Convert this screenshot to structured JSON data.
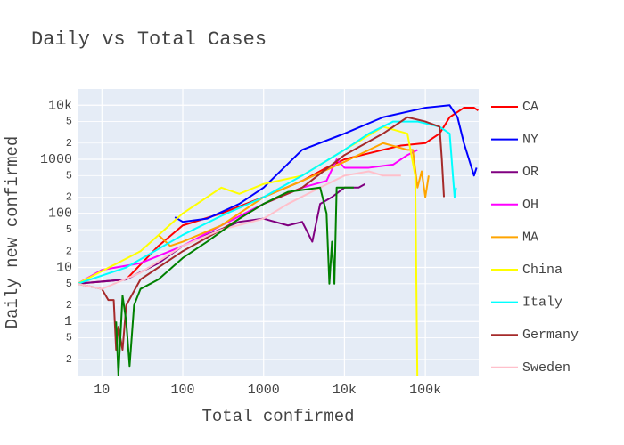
{
  "chart_data": {
    "type": "line",
    "title": "Daily vs Total Cases",
    "x_label": "Total confirmed",
    "y_label": "Daily new confirmed",
    "xscale": "log",
    "yscale": "log",
    "grid": true,
    "legend": "right",
    "xlim": [
      5,
      457000
    ],
    "ylim": [
      0.1,
      20000
    ],
    "xticks": [
      10,
      100,
      1000,
      {
        "value": 10000,
        "label": "10k"
      },
      {
        "value": 100000,
        "label": "100k"
      }
    ],
    "yticks": [
      {
        "value": 10000,
        "label": "10k"
      },
      {
        "value": 5000,
        "label": "5"
      },
      {
        "value": 2000,
        "label": "2"
      },
      1000,
      {
        "value": 500,
        "label": "5"
      },
      {
        "value": 200,
        "label": "2"
      },
      100,
      {
        "value": 50,
        "label": "5"
      },
      {
        "value": 20,
        "label": "2"
      },
      10,
      5,
      2,
      1,
      {
        "value": 0.5,
        "label": "5"
      },
      {
        "value": 0.2,
        "label": "2"
      }
    ],
    "series": [
      {
        "name": "CA",
        "color": "#ff0000",
        "x": [
          5,
          20,
          50,
          100,
          300,
          1000,
          3000,
          6000,
          10000,
          30000,
          50000,
          100000,
          150000,
          200000,
          300000,
          400000,
          450000
        ],
        "values": [
          5,
          6,
          25,
          60,
          100,
          200,
          400,
          700,
          1000,
          1500,
          1800,
          2000,
          3000,
          6000,
          9000,
          9000,
          8000
        ]
      },
      {
        "name": "NY",
        "color": "#0000ff",
        "x": [
          80,
          100,
          200,
          500,
          1000,
          3000,
          10000,
          30000,
          100000,
          200000,
          250000,
          300000,
          400000,
          430000
        ],
        "values": [
          85,
          70,
          80,
          150,
          300,
          1500,
          3000,
          6000,
          9000,
          10000,
          6000,
          2000,
          500,
          700
        ]
      },
      {
        "name": "OR",
        "color": "#800080",
        "x": [
          5,
          20,
          50,
          100,
          200,
          500,
          1000,
          2000,
          3000,
          4000,
          5000,
          7000,
          10000,
          15000,
          18000
        ],
        "values": [
          5,
          6,
          12,
          25,
          40,
          70,
          80,
          60,
          70,
          30,
          150,
          200,
          300,
          300,
          350
        ]
      },
      {
        "name": "OH",
        "color": "#ff00ff",
        "x": [
          5,
          10,
          30,
          100,
          300,
          1000,
          3000,
          6000,
          8000,
          10000,
          20000,
          40000,
          60000,
          80000
        ],
        "values": [
          5,
          9,
          12,
          25,
          60,
          150,
          300,
          400,
          1000,
          700,
          700,
          800,
          1200,
          1500
        ]
      },
      {
        "name": "MA",
        "color": "#ffa500",
        "x": [
          50,
          70,
          100,
          300,
          1000,
          3000,
          10000,
          30000,
          60000,
          70000,
          80000,
          90000,
          100000,
          110000
        ],
        "values": [
          40,
          25,
          30,
          60,
          200,
          400,
          900,
          2000,
          1500,
          1500,
          300,
          600,
          200,
          500
        ]
      },
      {
        "name": "China",
        "color": "#ffff00",
        "x": [
          5,
          30,
          100,
          300,
          500,
          1000,
          3000,
          10000,
          30000,
          60000,
          75000,
          80000
        ],
        "values": [
          5,
          20,
          100,
          300,
          230,
          350,
          500,
          1500,
          4000,
          3000,
          500,
          0.05
        ]
      },
      {
        "name": "Italy",
        "color": "#00ffff",
        "x": [
          5,
          20,
          100,
          300,
          1000,
          3000,
          10000,
          20000,
          40000,
          80000,
          150000,
          200000,
          230000,
          240000
        ],
        "values": [
          5,
          10,
          40,
          90,
          200,
          500,
          1500,
          3000,
          5000,
          5000,
          4000,
          3000,
          200,
          300
        ]
      },
      {
        "name": "Germany",
        "color": "#a52a2a",
        "x": [
          5,
          10,
          12,
          14,
          15,
          16,
          18,
          20,
          30,
          100,
          300,
          1000,
          3000,
          10000,
          30000,
          60000,
          100000,
          150000,
          160000,
          170000
        ],
        "values": [
          5,
          4,
          2.5,
          2.5,
          0.3,
          0.8,
          0.3,
          2,
          6,
          20,
          50,
          150,
          300,
          1200,
          3000,
          6000,
          5000,
          4000,
          1000,
          200
        ]
      },
      {
        "name": "Sweden",
        "color": "#ffc0cb",
        "x": [
          5,
          10,
          30,
          100,
          300,
          1000,
          2000,
          5000,
          10000,
          20000,
          30000,
          50000
        ],
        "values": [
          5,
          4,
          8,
          25,
          50,
          80,
          150,
          300,
          500,
          600,
          500,
          500
        ]
      },
      {
        "color": "#008000",
        "x": [
          15,
          16,
          18,
          20,
          22,
          25,
          30,
          50,
          100,
          200,
          500,
          1000,
          2000,
          5000,
          6000,
          6500,
          7000,
          7500,
          8000,
          10000,
          13000
        ],
        "values": [
          1,
          0.1,
          3,
          1,
          0.15,
          2,
          4,
          6,
          15,
          30,
          80,
          150,
          250,
          300,
          100,
          5,
          30,
          5,
          300,
          300,
          300
        ]
      }
    ]
  }
}
